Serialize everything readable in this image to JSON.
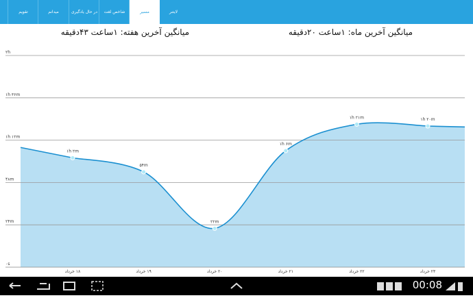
{
  "tabs": [
    "لایتنر",
    "مسیر",
    "شاخص لغت",
    "در حال یادگیری",
    "میدانم",
    "تقویم"
  ],
  "header": {
    "month_average": "میانگین آخرین ماه: ۱ساعت ۲۰دقیقه",
    "week_average": "میانگین آخرین هفته: ۱ساعت ۴۳دقیقه"
  },
  "chart_data": {
    "type": "line",
    "categories": [
      "۱۸ خرداد",
      "۱۹ خرداد",
      "۲۰ خرداد",
      "۲۱ خرداد",
      "۲۲ خرداد",
      "۲۳ خرداد"
    ],
    "series": [
      {
        "color": "#1a8fd0",
        "values": [
          62,
          54,
          22,
          66,
          81,
          80
        ],
        "value_labels": [
          "۱h ۲m",
          "۵۴m",
          "۲۲m",
          "۱h ۶m",
          "۱h ۲۱m",
          "۱h ۲۰m"
        ]
      }
    ],
    "ylim": [
      0,
      120
    ],
    "yticks": [
      {
        "value": 0,
        "label": "۰s"
      },
      {
        "value": 24,
        "label": "۲۴m"
      },
      {
        "value": 48,
        "label": "۴۸m"
      },
      {
        "value": 72,
        "label": "۱h ۱۲m"
      },
      {
        "value": 96,
        "label": "۱h ۳۶m"
      },
      {
        "value": 120,
        "label": "۲h"
      }
    ],
    "grid": true,
    "area_color": "#b8dff3"
  },
  "status": {
    "time": "00:08"
  }
}
